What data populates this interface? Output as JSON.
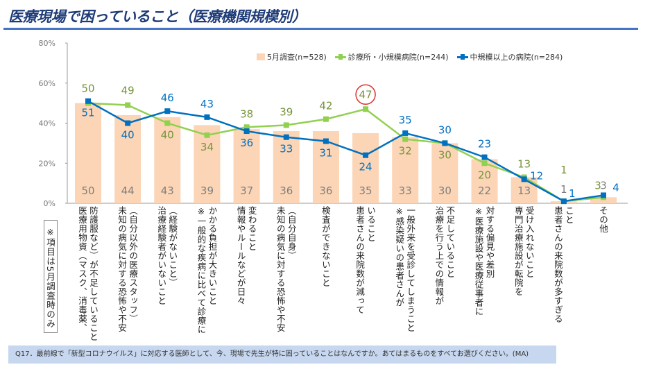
{
  "title": "医療現場で困っていること（医療機関規模別）",
  "note": "※項目は5月調査時のみ",
  "footer": "Q17．最前線で「新型コロナウイルス」に対応する医師として、今、現場で先生が特に困っていることはなんですか。あてはまるものをすべてお選びください。(MA)",
  "colors": {
    "bar": "#fbd5b5",
    "green": "#92d050",
    "green_label": "#77933c",
    "blue": "#0070c0",
    "bar_label": "#7f7f7f",
    "highlight_circle": "#e03030"
  },
  "chart_data": {
    "type": "bar+line",
    "ylim": [
      0,
      80
    ],
    "yticks": [
      "0%",
      "20%",
      "40%",
      "60%",
      "80%"
    ],
    "grid": false,
    "legend_position": "top-right",
    "categories": [
      [
        "医療用物資（マスク、消毒薬、",
        "防護服など）が不足していること"
      ],
      [
        "未知の病気に対する恐怖や不安",
        "（自分以外の医療スタッフ）"
      ],
      [
        "治療経験者がいないこと",
        "（経験がないこと）"
      ],
      [
        "※一般的な疾病に比べて診療に",
        "かかる負担が大きいこと"
      ],
      [
        "情報やルールなどが日々",
        "変わること"
      ],
      [
        "未知の病気に対する恐怖や不安",
        "（自分自身）"
      ],
      [
        "検査ができないこと"
      ],
      [
        "患者さんの来院数が減って",
        "いること"
      ],
      [
        "※感染疑いの患者さんが",
        "一般外来を受診してしまうこと"
      ],
      [
        "治療を行う上での情報が",
        "不足していること"
      ],
      [
        "※医療施設や医療従事者に",
        "対する偏見や差別"
      ],
      [
        "専門治療施設が転院を",
        "受け入れないこと"
      ],
      [
        "患者さんの来院数が多すぎる",
        "こと"
      ],
      [
        "その他"
      ]
    ],
    "series": [
      {
        "name": "5月調査(n=528)",
        "kind": "bar",
        "values": [
          50,
          44,
          43,
          39,
          37,
          36,
          36,
          35,
          33,
          30,
          22,
          13,
          1,
          3
        ]
      },
      {
        "name": "診療所・小規模病院(n=244)",
        "kind": "line",
        "values": [
          50,
          49,
          40,
          34,
          38,
          39,
          42,
          47,
          32,
          30,
          20,
          13,
          1,
          3
        ]
      },
      {
        "name": "中規模以上の病院(n=284)",
        "kind": "line",
        "values": [
          51,
          40,
          46,
          43,
          36,
          33,
          31,
          24,
          35,
          30,
          23,
          12,
          1,
          4
        ]
      }
    ],
    "highlighted": {
      "series": 1,
      "index": 7
    }
  }
}
